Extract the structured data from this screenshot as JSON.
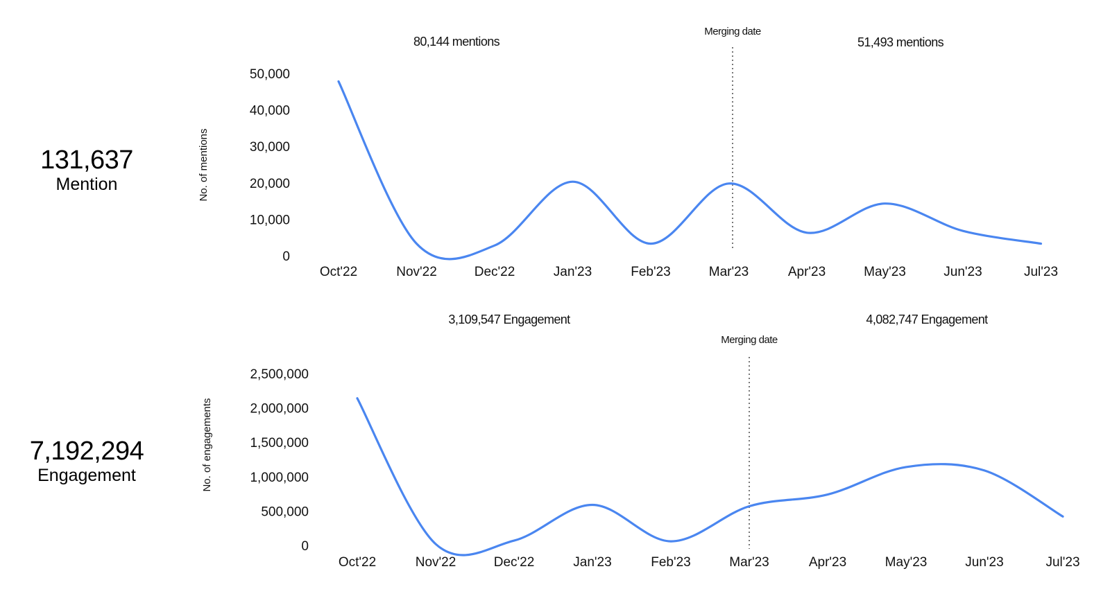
{
  "colors": {
    "series": "#4a86f0"
  },
  "kpis": {
    "mentions": {
      "value": "131,637",
      "label": "Mention"
    },
    "engagement": {
      "value": "7,192,294",
      "label": "Engagement"
    }
  },
  "chart_data": [
    {
      "type": "line",
      "title": "",
      "xlabel": "",
      "ylabel": "No. of mentions",
      "categories": [
        "Oct'22",
        "Nov'22",
        "Dec'22",
        "Jan'23",
        "Feb'23",
        "Mar'23",
        "Apr'23",
        "May'23",
        "Jun'23",
        "Jul'23"
      ],
      "series": [
        {
          "values": [
            48000,
            3500,
            3000,
            20500,
            3500,
            20000,
            6500,
            14500,
            7000,
            3500
          ]
        }
      ],
      "yticks": [
        0,
        10000,
        20000,
        30000,
        40000,
        50000
      ],
      "ytick_labels": [
        "0",
        "10,000",
        "20,000",
        "30,000",
        "40,000",
        "50,000"
      ],
      "ylim": [
        0,
        50000
      ],
      "grid": false,
      "legend": "none",
      "marker": {
        "category": "Mar'23",
        "label": "Merging date"
      },
      "annotations": [
        "80,144 mentions",
        "51,493 mentions"
      ]
    },
    {
      "type": "line",
      "title": "",
      "xlabel": "",
      "ylabel": "No. of engagements",
      "categories": [
        "Oct'22",
        "Nov'22",
        "Dec'22",
        "Jan'23",
        "Feb'23",
        "Mar'23",
        "Apr'23",
        "May'23",
        "Jun'23",
        "Jul'23"
      ],
      "series": [
        {
          "values": [
            2150000,
            30000,
            80000,
            600000,
            70000,
            580000,
            750000,
            1150000,
            1100000,
            430000
          ]
        }
      ],
      "yticks": [
        0,
        500000,
        1000000,
        1500000,
        2000000,
        2500000
      ],
      "ytick_labels": [
        "0",
        "500,000",
        "1,000,000",
        "1,500,000",
        "2,000,000",
        "2,500,000"
      ],
      "ylim": [
        0,
        2500000
      ],
      "grid": false,
      "legend": "none",
      "marker": {
        "category": "Mar'23",
        "label": "Merging date"
      },
      "annotations": [
        "3,109,547 Engagement",
        "4,082,747 Engagement"
      ]
    }
  ]
}
